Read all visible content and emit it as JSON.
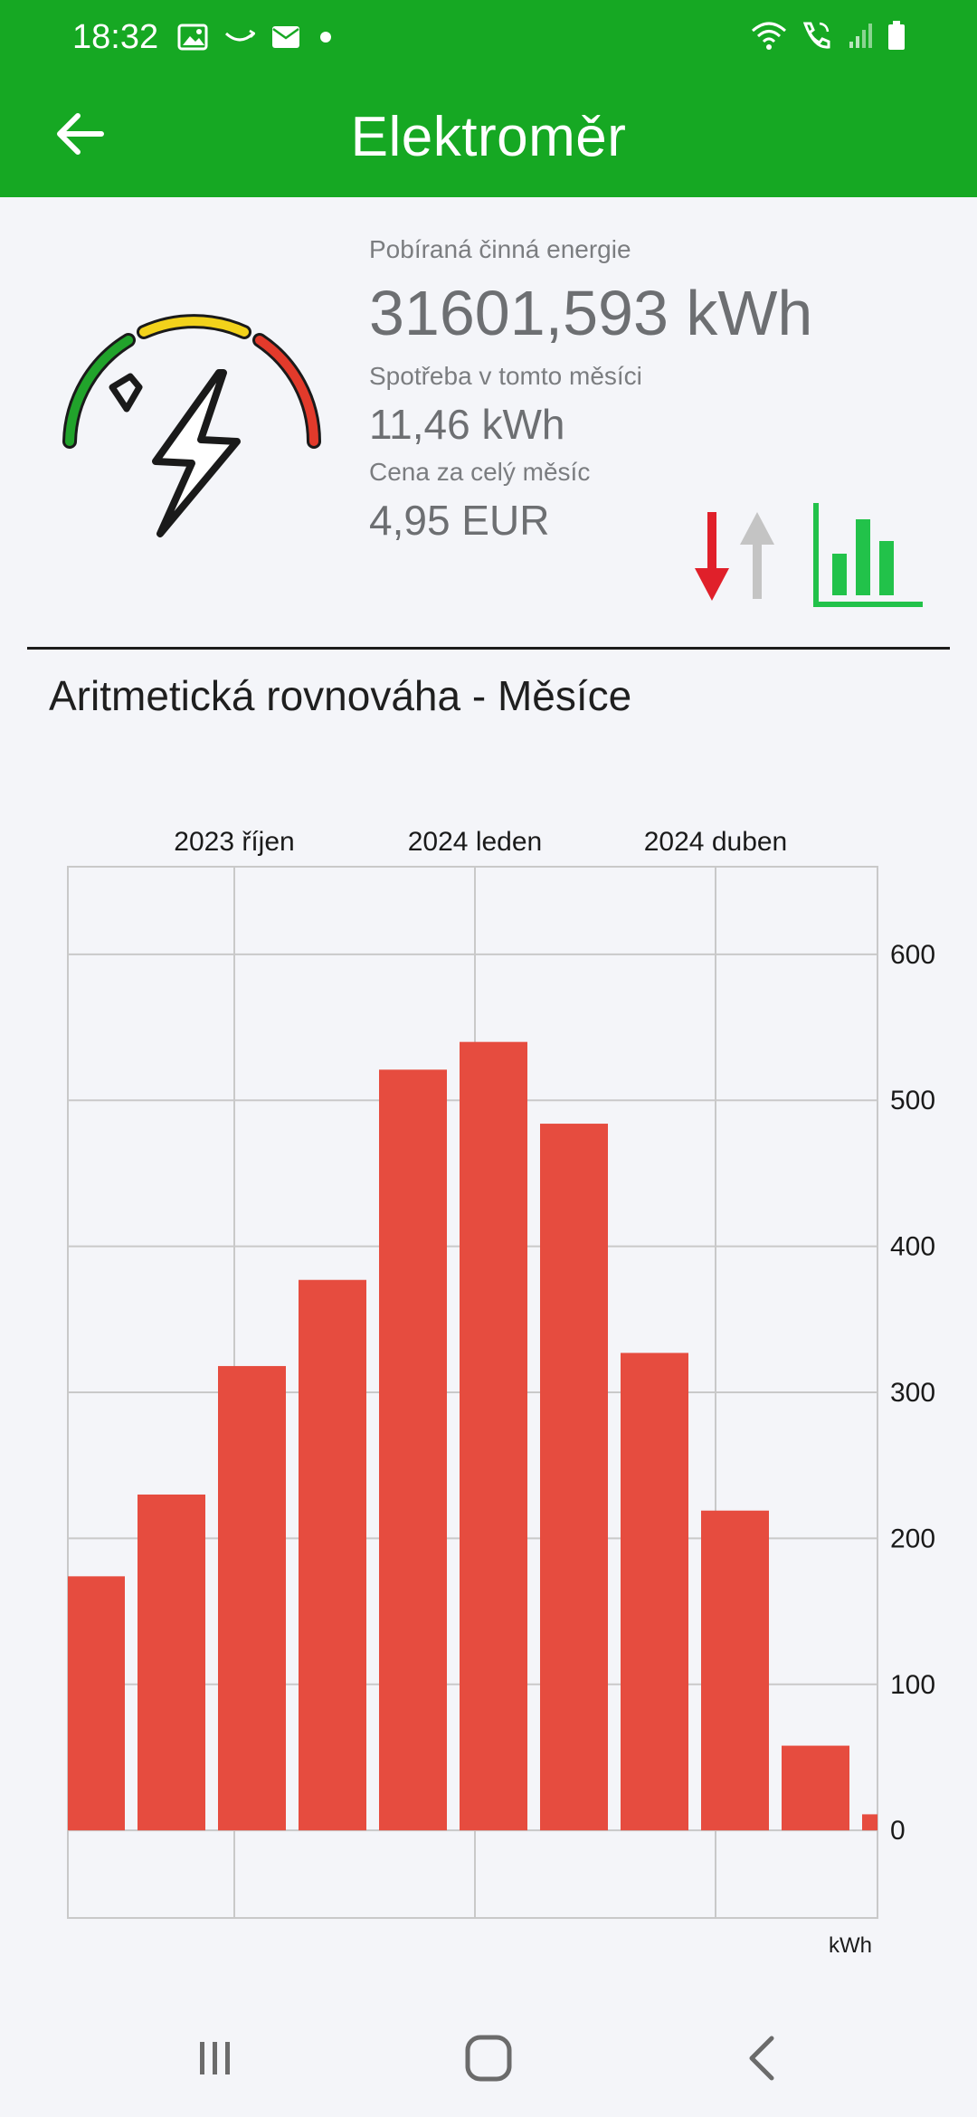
{
  "status_bar": {
    "time": "18:32",
    "left_icons": [
      "image-icon",
      "swoosh-icon",
      "mail-icon",
      "dot-icon"
    ],
    "right_icons": [
      "wifi-icon",
      "call-icon",
      "signal-icon",
      "battery-icon"
    ]
  },
  "app_bar": {
    "title": "Elektroměr",
    "back_icon": "arrow-left-icon"
  },
  "meter": {
    "energy_label": "Pobíraná činná energie",
    "energy_value": "31601,593 kWh",
    "month_consumption_label": "Spotřeba v tomto měsíci",
    "month_consumption_value": "11,46 kWh",
    "month_price_label": "Cena za celý měsíc",
    "month_price_value": "4,95 EUR",
    "colors": {
      "gauge_green": "#21a32b",
      "gauge_yellow": "#f2d21b",
      "gauge_red": "#e23a2b",
      "arrow_down": "#e0202a",
      "arrow_up": "#c4c4c4",
      "chart_icon": "#22c24a"
    }
  },
  "chart_heading": "Aritmetická rovnováha - Měsíce",
  "chart_data": {
    "type": "bar",
    "top_axis_labels": [
      {
        "label": "2023 říjen",
        "index": 2
      },
      {
        "label": "2024 leden",
        "index": 5
      },
      {
        "label": "2024 duben",
        "index": 8
      }
    ],
    "values": [
      174,
      230,
      318,
      377,
      521,
      540,
      484,
      327,
      219,
      58,
      11
    ],
    "ylim": [
      -60,
      660
    ],
    "y_ticks": [
      "0",
      "100",
      "200",
      "300",
      "400",
      "500",
      "600"
    ],
    "unit_label": "kWh",
    "bar_color": "#e64c3f",
    "grid": true
  },
  "nav_bar": {
    "icons": [
      "recent-apps-icon",
      "home-icon",
      "back-icon"
    ]
  }
}
